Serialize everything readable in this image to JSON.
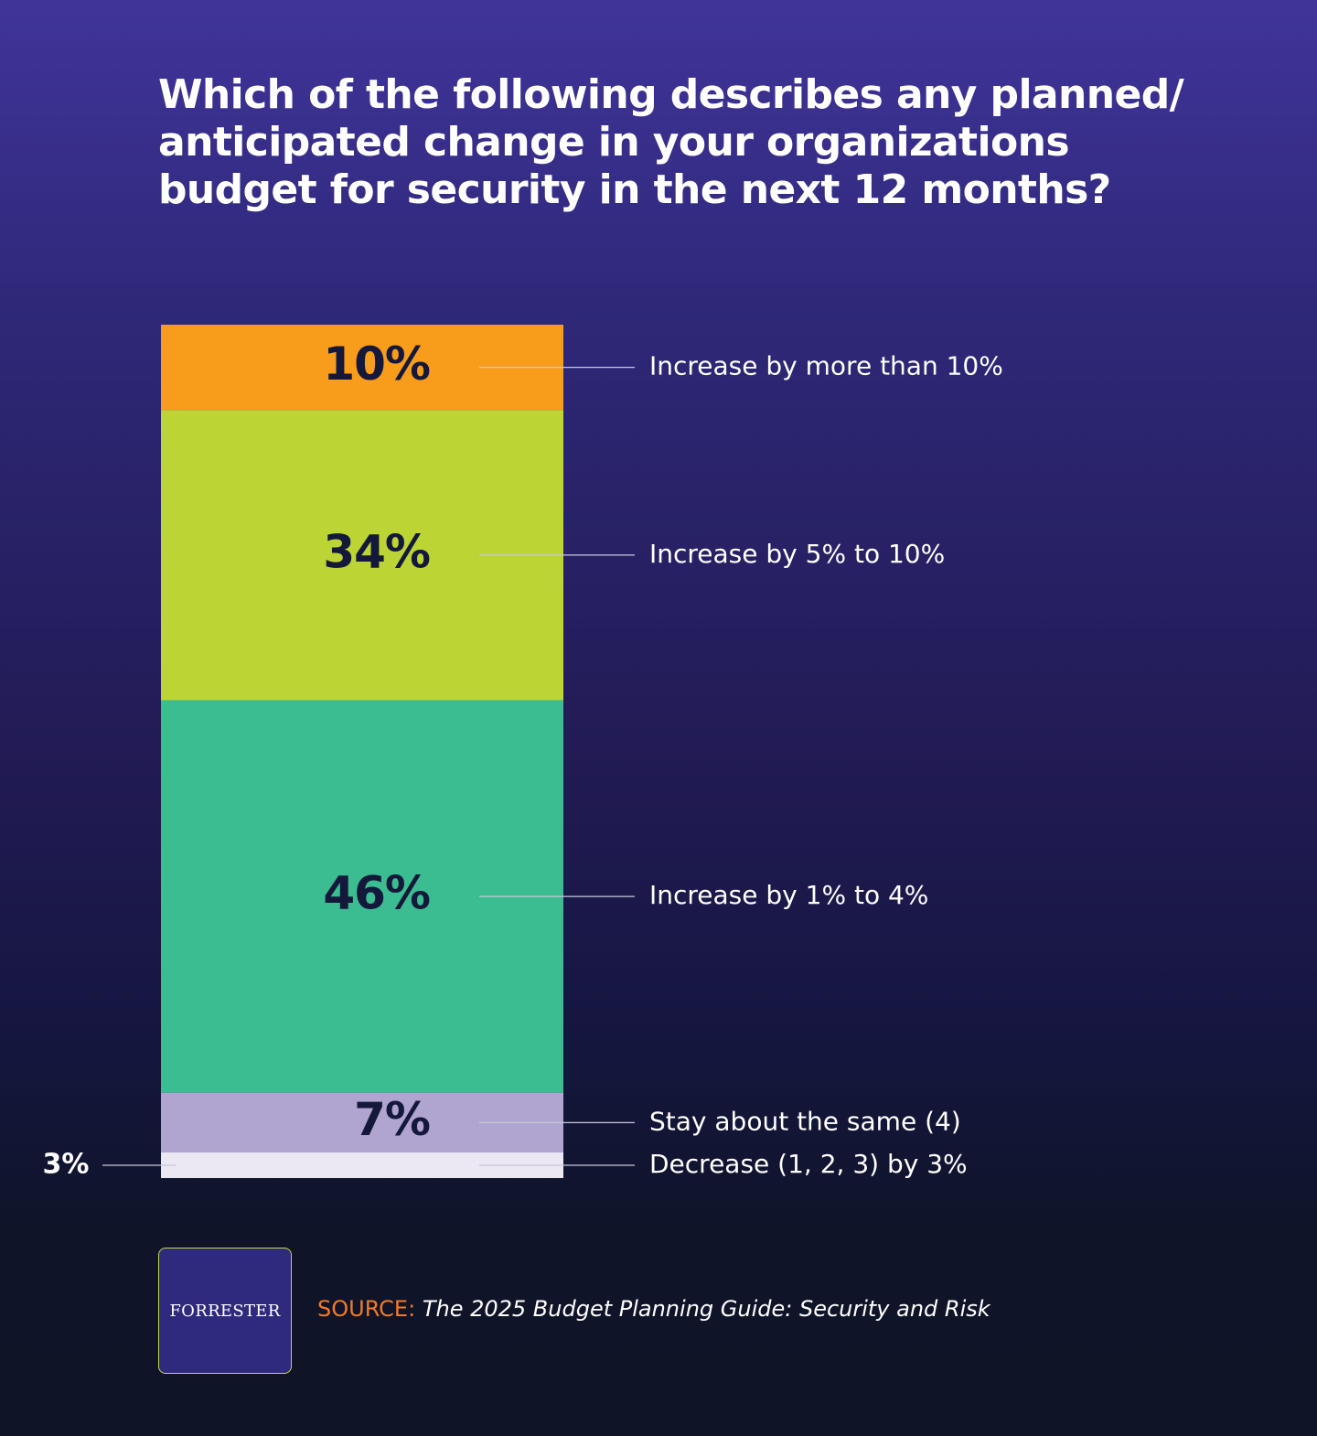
{
  "title": "Which of the following describes any planned/ anticipated change in your organizations budget for security in the next 12 months?",
  "chart_data": {
    "type": "bar",
    "stacked": true,
    "title": "Which of the following describes any planned/ anticipated change in your organizations budget for security in the next 12 months?",
    "segments": [
      {
        "label": "Increase by more than 10%",
        "value": 10,
        "value_label": "10%",
        "color": "#f89c1c"
      },
      {
        "label": "Increase by 5% to 10%",
        "value": 34,
        "value_label": "34%",
        "color": "#bcd535"
      },
      {
        "label": "Increase by 1% to 4%",
        "value": 46,
        "value_label": "46%",
        "color": "#3bbc91"
      },
      {
        "label": "Stay about the same (4)",
        "value": 7,
        "value_label": "7%",
        "color": "#b0a4d0"
      },
      {
        "label": "Decrease (1, 2, 3) by 3%",
        "value": 3,
        "value_label": "3%",
        "color": "#ebe7f3"
      }
    ],
    "label_color": "#14183a",
    "connector_color": "#c8c8dc"
  },
  "footer": {
    "logo": "Forrester",
    "source_prefix": "SOURCE:",
    "source_text": "The 2025 Budget Planning Guide: Security and Risk"
  }
}
